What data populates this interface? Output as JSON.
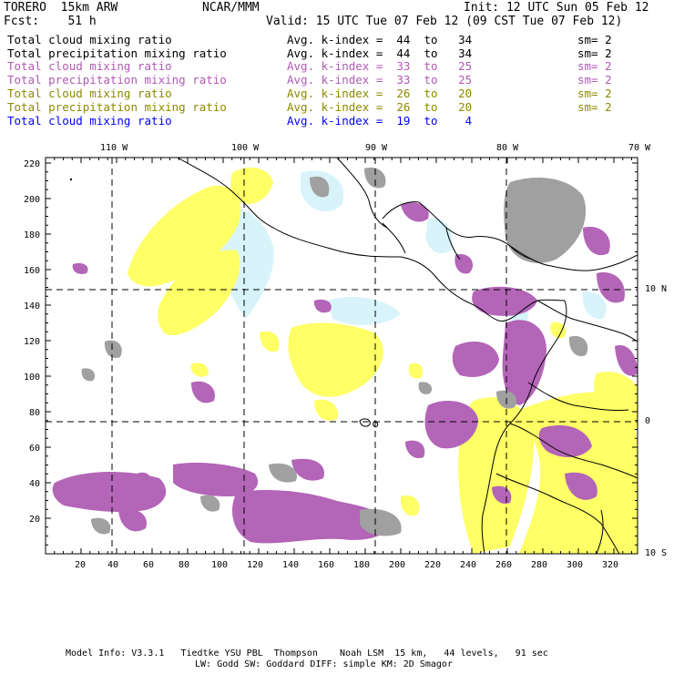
{
  "header": {
    "model": "TORERO  15km ARW",
    "center": "NCAR/MMM",
    "init": "Init: 12 UTC Sun 05 Feb 12",
    "fcst": "Fcst:    51 h",
    "valid": "Valid: 15 UTC Tue 07 Feb 12 (09 CST Tue 07 Feb 12)"
  },
  "legend": [
    {
      "field": "Total cloud mixing ratio",
      "kindex": "Avg. k-index =  44  to   34",
      "sm": "sm= 2",
      "color": "#000000"
    },
    {
      "field": "Total precipitation mixing ratio",
      "kindex": "Avg. k-index =  44  to   34",
      "sm": "sm= 2",
      "color": "#000000"
    },
    {
      "field": "Total cloud mixing ratio",
      "kindex": "Avg. k-index =  33  to   25",
      "sm": "sm= 2",
      "color": "#b05ab5"
    },
    {
      "field": "Total precipitation mixing ratio",
      "kindex": "Avg. k-index =  33  to   25",
      "sm": "sm= 2",
      "color": "#b05ab5"
    },
    {
      "field": "Total cloud mixing ratio",
      "kindex": "Avg. k-index =  26  to   20",
      "sm": "sm= 2",
      "color": "#8a8a00"
    },
    {
      "field": "Total precipitation mixing ratio",
      "kindex": "Avg. k-index =  26  to   20",
      "sm": "sm= 2",
      "color": "#8a8a00"
    },
    {
      "field": "Total cloud mixing ratio",
      "kindex": "Avg. k-index =  19  to    4",
      "sm": "",
      "color": "#0000ff"
    }
  ],
  "axes": {
    "lon_labels": [
      "110 W",
      "100 W",
      "90 W",
      "80 W",
      "70 W"
    ],
    "lat_labels": [
      "10 N",
      "0",
      "10 S"
    ],
    "x_ticks": [
      "20",
      "40",
      "60",
      "80",
      "100",
      "120",
      "140",
      "160",
      "180",
      "200",
      "220",
      "240",
      "260",
      "280",
      "300",
      "320"
    ],
    "y_ticks": [
      "220",
      "200",
      "180",
      "160",
      "140",
      "120",
      "100",
      "80",
      "60",
      "40",
      "20"
    ]
  },
  "colors": {
    "yellow": "#ffff66",
    "purple": "#b365b8",
    "gray": "#a0a0a0",
    "cyan": "#d8f4fa"
  },
  "footer": {
    "line1": "Model Info: V3.3.1   Tiedtke YSU PBL  Thompson    Noah LSM  15 km,   44 levels,   91 sec",
    "line2": "LW: Godd SW: Goddard DIFF: simple KM: 2D Smagor"
  }
}
